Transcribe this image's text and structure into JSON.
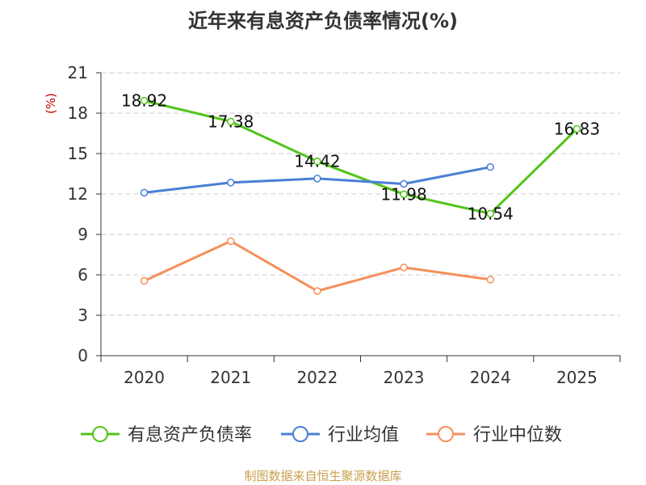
{
  "chart_data": {
    "type": "line",
    "title": "近年来有息资产负债率情况(%)",
    "ylabel": "(%)",
    "categories": [
      "2020",
      "2021",
      "2022",
      "2023",
      "2024",
      "2025"
    ],
    "ylim": [
      0,
      21
    ],
    "yticks": [
      0,
      3,
      6,
      9,
      12,
      15,
      18,
      21
    ],
    "grid": true,
    "legend_position": "bottom",
    "series": [
      {
        "name": "有息资产负债率",
        "color": "#52c41a",
        "values": [
          18.92,
          17.38,
          14.42,
          11.98,
          10.54,
          16.83
        ],
        "labels": [
          "18.92",
          "17.38",
          "14.42",
          "11.98",
          "10.54",
          "16.83"
        ]
      },
      {
        "name": "行业均值",
        "color": "#4a7fd6",
        "values": [
          12.1,
          12.85,
          13.15,
          12.75,
          14.0,
          null
        ]
      },
      {
        "name": "行业中位数",
        "color": "#f5905c",
        "values": [
          5.55,
          8.5,
          4.8,
          6.55,
          5.65,
          null
        ]
      }
    ]
  },
  "source": "制图数据来自恒生聚源数据库"
}
